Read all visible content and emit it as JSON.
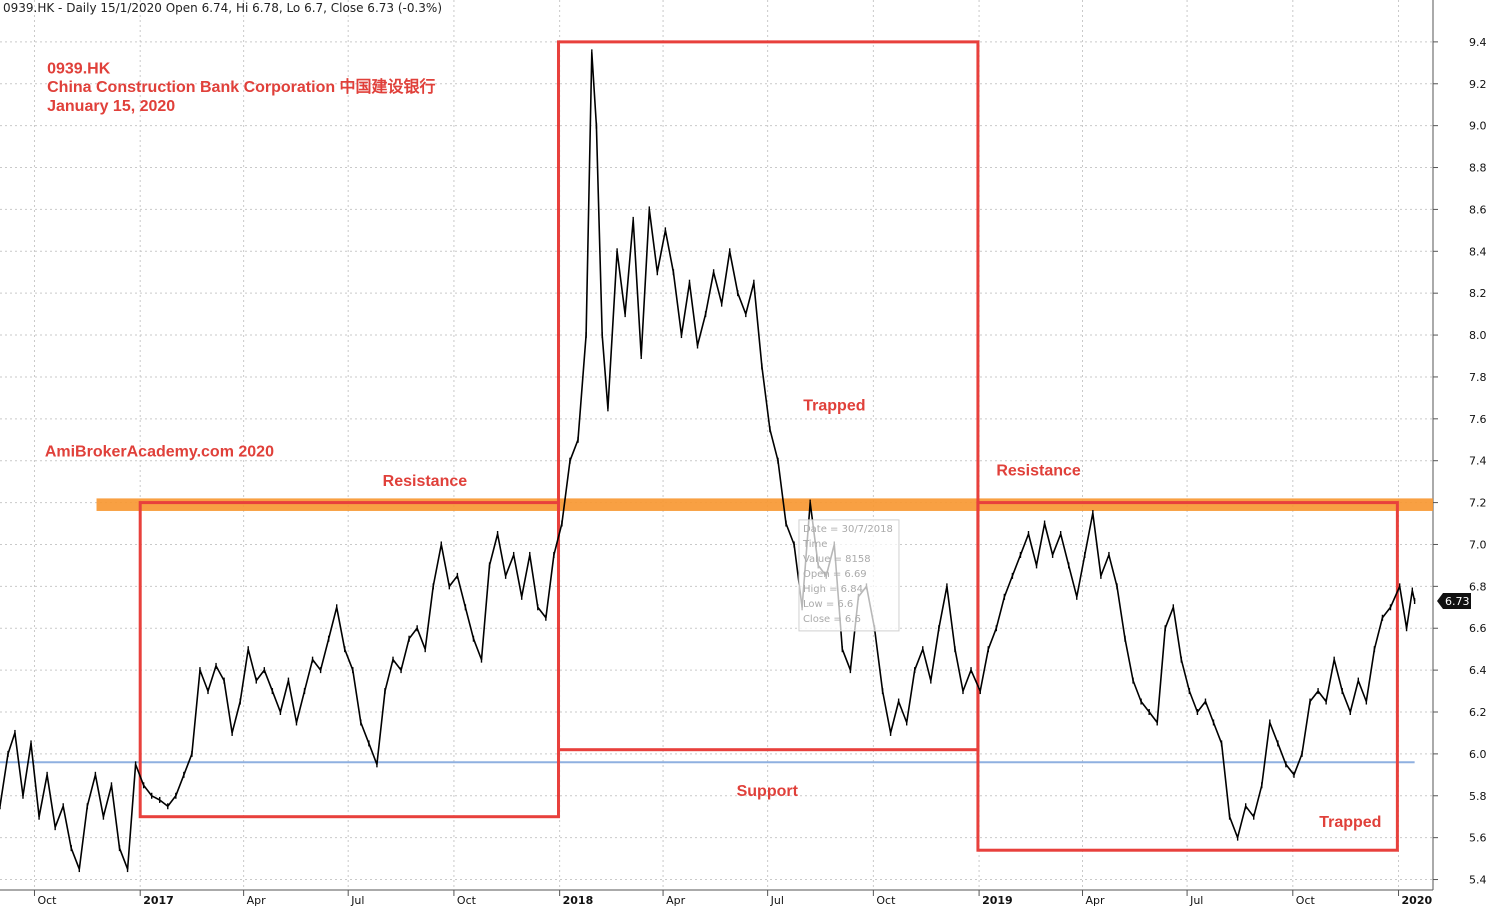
{
  "header": {
    "text": "0939.HK - Daily 15/1/2020 Open 6.74, Hi 6.78, Lo 6.7, Close 6.73 (-0.3%)"
  },
  "annotations": {
    "ticker": "0939.HK",
    "company": "China Construction Bank Corporation  中国建设银行",
    "date": "January 15, 2020",
    "watermark": "AmiBrokerAcademy.com   2020",
    "resistance_1": "Resistance",
    "resistance_2": "Resistance",
    "trapped_1": "Trapped",
    "trapped_2": "Trapped",
    "support": "Support"
  },
  "tooltip": {
    "lines": [
      "Date = 30/7/2018",
      "Time",
      "Value = 8158",
      "Open = 6.69",
      "High = 6.84",
      "Low = 6.6",
      "Close = 6.6"
    ]
  },
  "price_badge": "6.73",
  "colors": {
    "price": "#000000",
    "box": "#e8403c",
    "resistance_band": "#f7962f",
    "support_line": "#8fb0e0",
    "grid": "#c9c9c9",
    "annotation_text": "#e0403a"
  },
  "chart_data": {
    "type": "line",
    "title": "0939.HK - Daily",
    "xlabel": "",
    "ylabel": "",
    "ylim": [
      5.35,
      9.6
    ],
    "x_range": [
      "2016-09-01",
      "2020-01-31"
    ],
    "y_ticks": [
      5.4,
      5.6,
      5.8,
      6.0,
      6.2,
      6.4,
      6.6,
      6.8,
      7.0,
      7.2,
      7.4,
      7.6,
      7.8,
      8.0,
      8.2,
      8.4,
      8.6,
      8.8,
      9.0,
      9.2,
      9.4
    ],
    "x_ticks": [
      {
        "label": "Oct",
        "date": "2016-10-01",
        "year": false
      },
      {
        "label": "2017",
        "date": "2017-01-01",
        "year": true
      },
      {
        "label": "Apr",
        "date": "2017-04-01",
        "year": false
      },
      {
        "label": "Jul",
        "date": "2017-07-01",
        "year": false
      },
      {
        "label": "Oct",
        "date": "2017-10-01",
        "year": false
      },
      {
        "label": "2018",
        "date": "2018-01-01",
        "year": true
      },
      {
        "label": "Apr",
        "date": "2018-04-01",
        "year": false
      },
      {
        "label": "Jul",
        "date": "2018-07-01",
        "year": false
      },
      {
        "label": "Oct",
        "date": "2018-10-01",
        "year": false
      },
      {
        "label": "2019",
        "date": "2019-01-01",
        "year": true
      },
      {
        "label": "Apr",
        "date": "2019-04-01",
        "year": false
      },
      {
        "label": "Jul",
        "date": "2019-07-01",
        "year": false
      },
      {
        "label": "Oct",
        "date": "2019-10-01",
        "year": false
      },
      {
        "label": "2020",
        "date": "2020-01-01",
        "year": true
      }
    ],
    "grid": true,
    "series": [
      {
        "name": "0939.HK",
        "points": [
          [
            "2016-09-01",
            5.75
          ],
          [
            "2016-09-08",
            6.0
          ],
          [
            "2016-09-14",
            6.1
          ],
          [
            "2016-09-21",
            5.8
          ],
          [
            "2016-09-28",
            6.05
          ],
          [
            "2016-10-05",
            5.7
          ],
          [
            "2016-10-12",
            5.9
          ],
          [
            "2016-10-19",
            5.65
          ],
          [
            "2016-10-26",
            5.75
          ],
          [
            "2016-11-02",
            5.55
          ],
          [
            "2016-11-09",
            5.45
          ],
          [
            "2016-11-16",
            5.75
          ],
          [
            "2016-11-23",
            5.9
          ],
          [
            "2016-11-30",
            5.7
          ],
          [
            "2016-12-07",
            5.85
          ],
          [
            "2016-12-14",
            5.55
          ],
          [
            "2016-12-21",
            5.45
          ],
          [
            "2016-12-28",
            5.95
          ],
          [
            "2017-01-04",
            5.85
          ],
          [
            "2017-01-11",
            5.8
          ],
          [
            "2017-01-18",
            5.78
          ],
          [
            "2017-01-25",
            5.75
          ],
          [
            "2017-02-01",
            5.8
          ],
          [
            "2017-02-08",
            5.9
          ],
          [
            "2017-02-15",
            6.0
          ],
          [
            "2017-02-22",
            6.4
          ],
          [
            "2017-03-01",
            6.3
          ],
          [
            "2017-03-08",
            6.42
          ],
          [
            "2017-03-15",
            6.35
          ],
          [
            "2017-03-22",
            6.1
          ],
          [
            "2017-03-29",
            6.25
          ],
          [
            "2017-04-05",
            6.5
          ],
          [
            "2017-04-12",
            6.35
          ],
          [
            "2017-04-19",
            6.4
          ],
          [
            "2017-04-26",
            6.3
          ],
          [
            "2017-05-03",
            6.2
          ],
          [
            "2017-05-10",
            6.35
          ],
          [
            "2017-05-17",
            6.15
          ],
          [
            "2017-05-24",
            6.3
          ],
          [
            "2017-05-31",
            6.45
          ],
          [
            "2017-06-07",
            6.4
          ],
          [
            "2017-06-14",
            6.55
          ],
          [
            "2017-06-21",
            6.7
          ],
          [
            "2017-06-28",
            6.5
          ],
          [
            "2017-07-05",
            6.4
          ],
          [
            "2017-07-12",
            6.15
          ],
          [
            "2017-07-19",
            6.05
          ],
          [
            "2017-07-26",
            5.95
          ],
          [
            "2017-08-02",
            6.3
          ],
          [
            "2017-08-09",
            6.45
          ],
          [
            "2017-08-16",
            6.4
          ],
          [
            "2017-08-23",
            6.55
          ],
          [
            "2017-08-30",
            6.6
          ],
          [
            "2017-09-06",
            6.5
          ],
          [
            "2017-09-13",
            6.8
          ],
          [
            "2017-09-20",
            7.0
          ],
          [
            "2017-09-27",
            6.8
          ],
          [
            "2017-10-04",
            6.85
          ],
          [
            "2017-10-11",
            6.7
          ],
          [
            "2017-10-18",
            6.55
          ],
          [
            "2017-10-25",
            6.45
          ],
          [
            "2017-11-01",
            6.9
          ],
          [
            "2017-11-08",
            7.05
          ],
          [
            "2017-11-15",
            6.85
          ],
          [
            "2017-11-22",
            6.95
          ],
          [
            "2017-11-29",
            6.75
          ],
          [
            "2017-12-06",
            6.95
          ],
          [
            "2017-12-13",
            6.7
          ],
          [
            "2017-12-20",
            6.65
          ],
          [
            "2017-12-27",
            6.95
          ],
          [
            "2018-01-03",
            7.1
          ],
          [
            "2018-01-10",
            7.4
          ],
          [
            "2018-01-17",
            7.5
          ],
          [
            "2018-01-24",
            8.0
          ],
          [
            "2018-01-29",
            9.35
          ],
          [
            "2018-02-02",
            9.0
          ],
          [
            "2018-02-07",
            8.0
          ],
          [
            "2018-02-12",
            7.65
          ],
          [
            "2018-02-20",
            8.4
          ],
          [
            "2018-02-27",
            8.1
          ],
          [
            "2018-03-06",
            8.55
          ],
          [
            "2018-03-13",
            7.9
          ],
          [
            "2018-03-20",
            8.6
          ],
          [
            "2018-03-27",
            8.3
          ],
          [
            "2018-04-03",
            8.5
          ],
          [
            "2018-04-10",
            8.3
          ],
          [
            "2018-04-17",
            8.0
          ],
          [
            "2018-04-24",
            8.25
          ],
          [
            "2018-05-01",
            7.95
          ],
          [
            "2018-05-08",
            8.1
          ],
          [
            "2018-05-15",
            8.3
          ],
          [
            "2018-05-22",
            8.15
          ],
          [
            "2018-05-29",
            8.4
          ],
          [
            "2018-06-05",
            8.2
          ],
          [
            "2018-06-12",
            8.1
          ],
          [
            "2018-06-19",
            8.25
          ],
          [
            "2018-06-26",
            7.85
          ],
          [
            "2018-07-03",
            7.55
          ],
          [
            "2018-07-10",
            7.4
          ],
          [
            "2018-07-17",
            7.1
          ],
          [
            "2018-07-24",
            7.0
          ],
          [
            "2018-07-31",
            6.7
          ],
          [
            "2018-08-07",
            7.2
          ],
          [
            "2018-08-14",
            6.9
          ],
          [
            "2018-08-21",
            6.85
          ],
          [
            "2018-08-28",
            7.0
          ],
          [
            "2018-09-04",
            6.5
          ],
          [
            "2018-09-11",
            6.4
          ],
          [
            "2018-09-18",
            6.75
          ],
          [
            "2018-09-25",
            6.8
          ],
          [
            "2018-10-02",
            6.6
          ],
          [
            "2018-10-09",
            6.3
          ],
          [
            "2018-10-16",
            6.1
          ],
          [
            "2018-10-23",
            6.25
          ],
          [
            "2018-10-30",
            6.15
          ],
          [
            "2018-11-06",
            6.4
          ],
          [
            "2018-11-13",
            6.5
          ],
          [
            "2018-11-20",
            6.35
          ],
          [
            "2018-11-27",
            6.6
          ],
          [
            "2018-12-04",
            6.8
          ],
          [
            "2018-12-11",
            6.5
          ],
          [
            "2018-12-18",
            6.3
          ],
          [
            "2018-12-25",
            6.4
          ],
          [
            "2019-01-02",
            6.3
          ],
          [
            "2019-01-09",
            6.5
          ],
          [
            "2019-01-16",
            6.6
          ],
          [
            "2019-01-23",
            6.75
          ],
          [
            "2019-01-30",
            6.85
          ],
          [
            "2019-02-06",
            6.95
          ],
          [
            "2019-02-13",
            7.05
          ],
          [
            "2019-02-20",
            6.9
          ],
          [
            "2019-02-27",
            7.1
          ],
          [
            "2019-03-06",
            6.95
          ],
          [
            "2019-03-13",
            7.05
          ],
          [
            "2019-03-20",
            6.9
          ],
          [
            "2019-03-27",
            6.75
          ],
          [
            "2019-04-03",
            6.95
          ],
          [
            "2019-04-10",
            7.15
          ],
          [
            "2019-04-17",
            6.85
          ],
          [
            "2019-04-24",
            6.95
          ],
          [
            "2019-05-01",
            6.8
          ],
          [
            "2019-05-08",
            6.55
          ],
          [
            "2019-05-15",
            6.35
          ],
          [
            "2019-05-22",
            6.25
          ],
          [
            "2019-05-29",
            6.2
          ],
          [
            "2019-06-05",
            6.15
          ],
          [
            "2019-06-12",
            6.6
          ],
          [
            "2019-06-19",
            6.7
          ],
          [
            "2019-06-26",
            6.45
          ],
          [
            "2019-07-03",
            6.3
          ],
          [
            "2019-07-10",
            6.2
          ],
          [
            "2019-07-17",
            6.25
          ],
          [
            "2019-07-24",
            6.15
          ],
          [
            "2019-07-31",
            6.05
          ],
          [
            "2019-08-07",
            5.7
          ],
          [
            "2019-08-14",
            5.6
          ],
          [
            "2019-08-21",
            5.75
          ],
          [
            "2019-08-28",
            5.7
          ],
          [
            "2019-09-04",
            5.85
          ],
          [
            "2019-09-11",
            6.15
          ],
          [
            "2019-09-18",
            6.05
          ],
          [
            "2019-09-25",
            5.95
          ],
          [
            "2019-10-02",
            5.9
          ],
          [
            "2019-10-09",
            6.0
          ],
          [
            "2019-10-16",
            6.25
          ],
          [
            "2019-10-23",
            6.3
          ],
          [
            "2019-10-30",
            6.25
          ],
          [
            "2019-11-06",
            6.45
          ],
          [
            "2019-11-13",
            6.3
          ],
          [
            "2019-11-20",
            6.2
          ],
          [
            "2019-11-27",
            6.35
          ],
          [
            "2019-12-04",
            6.25
          ],
          [
            "2019-12-11",
            6.5
          ],
          [
            "2019-12-18",
            6.65
          ],
          [
            "2019-12-25",
            6.7
          ],
          [
            "2020-01-02",
            6.8
          ],
          [
            "2020-01-08",
            6.6
          ],
          [
            "2020-01-13",
            6.78
          ],
          [
            "2020-01-15",
            6.73
          ]
        ]
      }
    ],
    "shapes": {
      "boxes": [
        {
          "start": "2017-01-01",
          "end": "2017-12-31",
          "low": 5.7,
          "high": 7.2
        },
        {
          "start": "2017-12-31",
          "end": "2018-12-31",
          "low": 6.02,
          "high": 9.4
        },
        {
          "start": "2018-12-31",
          "end": "2019-12-31",
          "low": 5.54,
          "high": 7.2
        }
      ],
      "resistance_band": {
        "start": "2016-11-24",
        "end": "2020-01-31",
        "low": 7.16,
        "high": 7.22
      },
      "support_line": {
        "start": "2016-09-01",
        "end": "2020-01-15",
        "value": 5.96
      }
    },
    "label_anchors": {
      "ticker": {
        "date": "2016-10-12",
        "value": 9.25
      },
      "company": {
        "date": "2016-10-12",
        "value": 9.16
      },
      "date": {
        "date": "2016-10-12",
        "value": 9.07
      },
      "watermark": {
        "date": "2016-10-10",
        "value": 7.42
      },
      "resistance_1": {
        "date": "2017-07-31",
        "value": 7.28
      },
      "resistance_2": {
        "date": "2019-01-16",
        "value": 7.33
      },
      "trapped_1": {
        "date": "2018-08-01",
        "value": 7.64
      },
      "trapped_2": {
        "date": "2019-10-24",
        "value": 5.65
      },
      "support": {
        "date": "2018-06-04",
        "value": 5.8
      }
    },
    "tooltip_anchor": {
      "date": "2018-07-30",
      "value": 7.06
    }
  }
}
